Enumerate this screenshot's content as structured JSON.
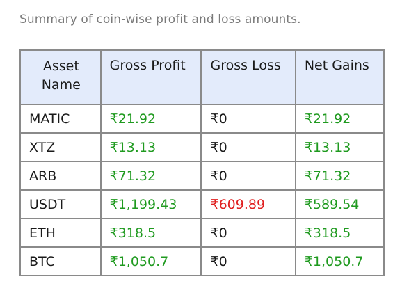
{
  "caption": "Summary of coin-wise profit and loss amounts.",
  "table": {
    "headers": {
      "asset": "Asset Name",
      "gross_profit": "Gross Profit",
      "gross_loss": "Gross Loss",
      "net_gains": "Net Gains"
    },
    "rows": [
      {
        "asset": "MATIC",
        "gross_profit": "₹21.92",
        "gross_loss": "₹0",
        "net_gains": "₹21.92"
      },
      {
        "asset": "XTZ",
        "gross_profit": "₹13.13",
        "gross_loss": "₹0",
        "net_gains": "₹13.13"
      },
      {
        "asset": "ARB",
        "gross_profit": "₹71.32",
        "gross_loss": "₹0",
        "net_gains": "₹71.32"
      },
      {
        "asset": "USDT",
        "gross_profit": "₹1,199.43",
        "gross_loss": "₹609.89",
        "net_gains": "₹589.54"
      },
      {
        "asset": "ETH",
        "gross_profit": "₹318.5",
        "gross_loss": "₹0",
        "net_gains": "₹318.5"
      },
      {
        "asset": "BTC",
        "gross_profit": "₹1,050.7",
        "gross_loss": "₹0",
        "net_gains": "₹1,050.7"
      }
    ]
  },
  "colors": {
    "profit": "#1f9a1f",
    "loss": "#e02020",
    "header_bg": "#e3ebfb",
    "border": "#8a8a8a",
    "caption": "#7a7a7a"
  }
}
